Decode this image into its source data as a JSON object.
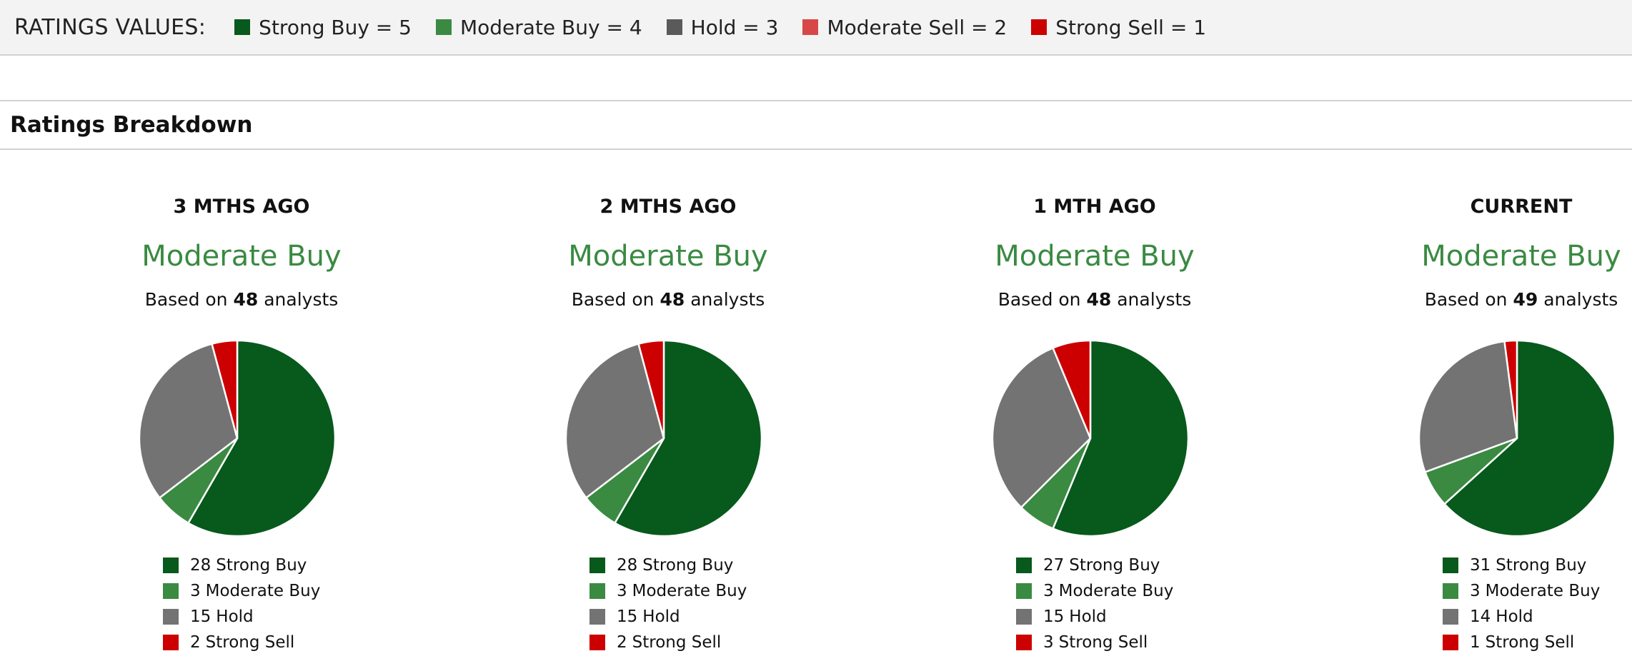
{
  "legend": {
    "title": "RATINGS VALUES:",
    "items": [
      {
        "label": "Strong Buy = 5",
        "color": "#07591c"
      },
      {
        "label": "Moderate Buy = 4",
        "color": "#3a8a42"
      },
      {
        "label": "Hold = 3",
        "color": "#5a5a5a"
      },
      {
        "label": "Moderate Sell = 2",
        "color": "#d84747"
      },
      {
        "label": "Strong Sell = 1",
        "color": "#cc0000"
      }
    ]
  },
  "section": {
    "title": "Ratings Breakdown"
  },
  "colors": {
    "strong_buy": "#07591c",
    "moderate_buy": "#3a8a42",
    "hold": "#737373",
    "strong_sell": "#cc0000",
    "consensus": "#3a8a42"
  },
  "chart_data": [
    {
      "type": "pie",
      "title": "3 MTHS AGO",
      "consensus": "Moderate Buy",
      "based_prefix": "Based on",
      "analysts": "48",
      "based_suffix": "analysts",
      "slices": [
        {
          "value": 28,
          "label": "Strong Buy",
          "color": "#07591c"
        },
        {
          "value": 3,
          "label": "Moderate Buy",
          "color": "#3a8a42"
        },
        {
          "value": 15,
          "label": "Hold",
          "color": "#737373"
        },
        {
          "value": 2,
          "label": "Strong Sell",
          "color": "#cc0000"
        }
      ]
    },
    {
      "type": "pie",
      "title": "2 MTHS AGO",
      "consensus": "Moderate Buy",
      "based_prefix": "Based on",
      "analysts": "48",
      "based_suffix": "analysts",
      "slices": [
        {
          "value": 28,
          "label": "Strong Buy",
          "color": "#07591c"
        },
        {
          "value": 3,
          "label": "Moderate Buy",
          "color": "#3a8a42"
        },
        {
          "value": 15,
          "label": "Hold",
          "color": "#737373"
        },
        {
          "value": 2,
          "label": "Strong Sell",
          "color": "#cc0000"
        }
      ]
    },
    {
      "type": "pie",
      "title": "1 MTH AGO",
      "consensus": "Moderate Buy",
      "based_prefix": "Based on",
      "analysts": "48",
      "based_suffix": "analysts",
      "slices": [
        {
          "value": 27,
          "label": "Strong Buy",
          "color": "#07591c"
        },
        {
          "value": 3,
          "label": "Moderate Buy",
          "color": "#3a8a42"
        },
        {
          "value": 15,
          "label": "Hold",
          "color": "#737373"
        },
        {
          "value": 3,
          "label": "Strong Sell",
          "color": "#cc0000"
        }
      ]
    },
    {
      "type": "pie",
      "title": "CURRENT",
      "consensus": "Moderate Buy",
      "based_prefix": "Based on",
      "analysts": "49",
      "based_suffix": "analysts",
      "slices": [
        {
          "value": 31,
          "label": "Strong Buy",
          "color": "#07591c"
        },
        {
          "value": 3,
          "label": "Moderate Buy",
          "color": "#3a8a42"
        },
        {
          "value": 14,
          "label": "Hold",
          "color": "#737373"
        },
        {
          "value": 1,
          "label": "Strong Sell",
          "color": "#cc0000"
        }
      ]
    }
  ]
}
